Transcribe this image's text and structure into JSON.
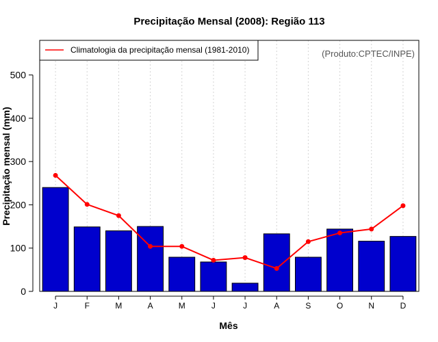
{
  "chart_data": {
    "type": "bar",
    "title": "Precipitação Mensal (2008): Região 113",
    "xlabel": "Mês",
    "ylabel": "Precipitação mensal (mm)",
    "categories": [
      "J",
      "F",
      "M",
      "A",
      "M",
      "J",
      "J",
      "A",
      "S",
      "O",
      "N",
      "D"
    ],
    "series": [
      {
        "name": "Precipitação mensal 2008",
        "type": "bar",
        "color": "#0000cd",
        "values": [
          240,
          149,
          140,
          150,
          79,
          68,
          19,
          133,
          79,
          144,
          116,
          127
        ]
      },
      {
        "name": "Climatologia da precipitação mensal (1981-2010)",
        "type": "line",
        "color": "#ff0000",
        "values": [
          268,
          201,
          175,
          104,
          104,
          72,
          78,
          53,
          115,
          135,
          144,
          198
        ]
      }
    ],
    "ylim": [
      0,
      580
    ],
    "yticks": [
      0,
      100,
      200,
      300,
      400,
      500
    ],
    "grid": "vertical dotted",
    "legend": {
      "position": "top-left",
      "entries": [
        "Climatologia da precipitação mensal (1981-2010)"
      ]
    },
    "annotation": "(Produto:CPTEC/INPE)"
  }
}
